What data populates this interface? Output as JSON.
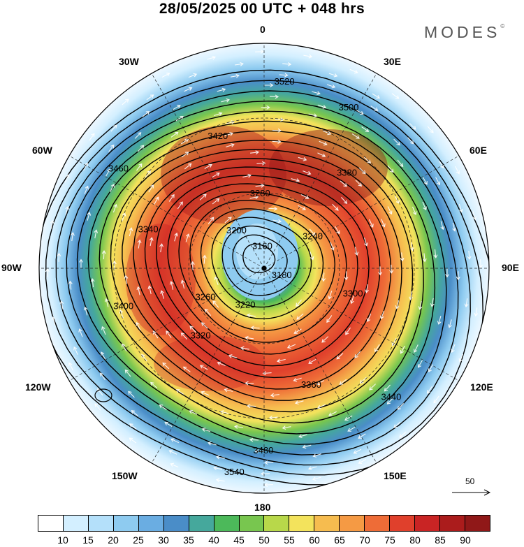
{
  "title": "28/05/2025  00 UTC  + 048 hrs",
  "brand": "MODES",
  "brand_mark": "©",
  "longitude_labels": {
    "n": "0",
    "ne": "30E",
    "e60": "60E",
    "e": "90E",
    "se120": "120E",
    "se150": "150E",
    "s": "180",
    "sw150": "150W",
    "w120": "120W",
    "w": "90W",
    "w60": "60W",
    "nw": "30W"
  },
  "contour_labels": [
    "3160",
    "3180",
    "3200",
    "3220",
    "3240",
    "3260",
    "3280",
    "3300",
    "3320",
    "3340",
    "3360",
    "3380",
    "3400",
    "3420",
    "3440",
    "3460",
    "3480",
    "3500",
    "3520",
    "3540"
  ],
  "vector_scale_label": "50",
  "colorbar": {
    "colors": [
      "#ffffff",
      "#d3efff",
      "#b4e0fa",
      "#8ecbf0",
      "#6aade2",
      "#4a8dc8",
      "#45a89c",
      "#4cb95a",
      "#78c64f",
      "#b8d84a",
      "#f3e35c",
      "#f6bc4f",
      "#f59a44",
      "#ee6c37",
      "#e0402c",
      "#c92424",
      "#ab1c1c",
      "#901818"
    ],
    "ticks": [
      "10",
      "15",
      "20",
      "25",
      "30",
      "35",
      "40",
      "45",
      "50",
      "55",
      "60",
      "65",
      "70",
      "75",
      "80",
      "85",
      "90"
    ]
  }
}
